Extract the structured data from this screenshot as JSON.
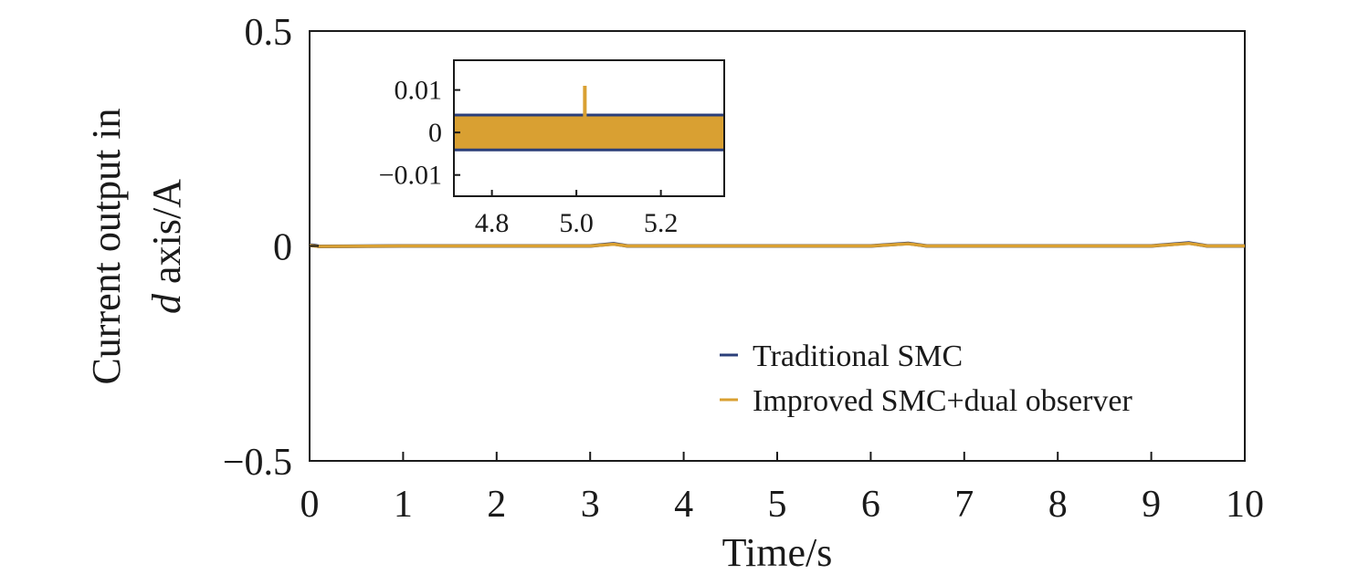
{
  "chart_data": {
    "type": "line",
    "xlabel": "Time/s",
    "ylabel_line1": "Current output in",
    "ylabel_line2_italic": "d",
    "ylabel_line2_rest": " axis/A",
    "xlim": [
      0,
      10
    ],
    "ylim": [
      -0.5,
      0.5
    ],
    "x_ticks": [
      0,
      1,
      2,
      3,
      4,
      5,
      6,
      7,
      8,
      9,
      10
    ],
    "x_tick_labels": [
      "0",
      "1",
      "2",
      "3",
      "4",
      "5",
      "6",
      "7",
      "8",
      "9",
      "10"
    ],
    "y_ticks": [
      -0.5,
      0,
      0.5
    ],
    "y_tick_labels": [
      "−0.5",
      "0",
      "0.5"
    ],
    "grid": false,
    "legend_position": "bottom-right",
    "series": [
      {
        "name": "Traditional SMC",
        "color": "#2b3f7a",
        "x": [
          0,
          0.05,
          0.1,
          1,
          2,
          3,
          3.25,
          3.4,
          4,
          5,
          6,
          6.4,
          6.6,
          7,
          8,
          9,
          9.4,
          9.6,
          10
        ],
        "y": [
          0.002,
          0.001,
          -0.001,
          0,
          0,
          0,
          0.005,
          0,
          0,
          0,
          0,
          0.006,
          0,
          0,
          0,
          0,
          0.007,
          0,
          0
        ]
      },
      {
        "name": "Improved SMC+dual observer",
        "color": "#d9a032",
        "x": [
          0,
          0.05,
          0.1,
          1,
          2,
          3,
          3.25,
          3.4,
          4,
          5,
          6,
          6.4,
          6.6,
          7,
          8,
          9,
          9.4,
          9.6,
          10
        ],
        "y": [
          0.001,
          0,
          -0.001,
          0,
          0,
          0,
          0.004,
          0,
          0,
          0,
          0,
          0.005,
          0,
          0,
          0,
          0,
          0.006,
          0,
          0
        ]
      }
    ],
    "inset": {
      "xlim": [
        4.71,
        5.35
      ],
      "ylim": [
        -0.015,
        0.017
      ],
      "x_ticks": [
        4.8,
        5.0,
        5.2
      ],
      "x_tick_labels": [
        "4.8",
        "5.0",
        "5.2"
      ],
      "y_ticks": [
        -0.01,
        0,
        0.01
      ],
      "y_tick_labels": [
        "−0.01",
        "0",
        "0.01"
      ],
      "noise_band": {
        "min": -0.004,
        "max": 0.004
      },
      "spike": {
        "x": 5.02,
        "y": 0.011
      }
    }
  }
}
